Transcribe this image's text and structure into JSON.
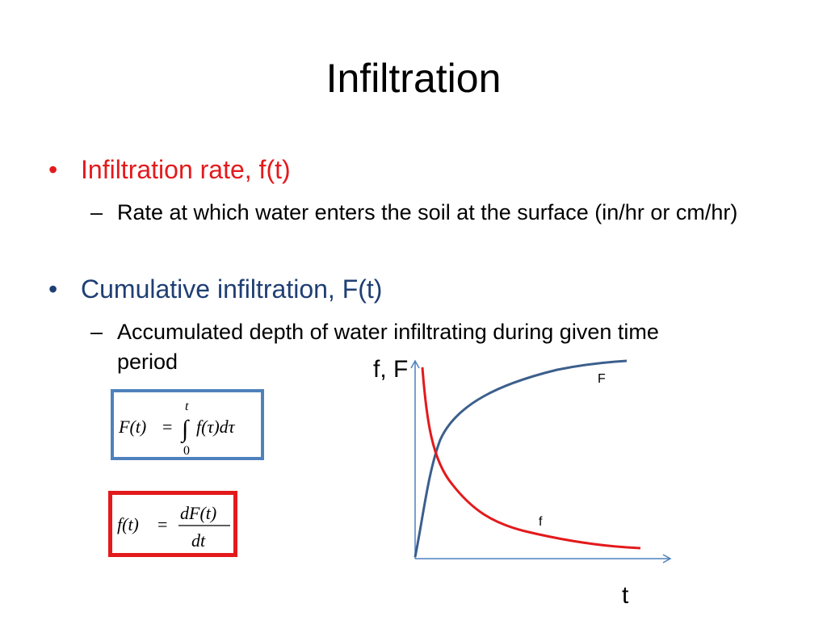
{
  "slide": {
    "title": "Infiltration",
    "bullets": [
      {
        "marker": "•",
        "text": "Infiltration rate, f(t)",
        "color": "#e31a1c",
        "sub": {
          "marker": "–",
          "text": "Rate at which water enters the soil at the surface (in/hr or cm/hr)"
        }
      },
      {
        "marker": "•",
        "text": "Cumulative infiltration, F(t)",
        "color": "#1f3f73",
        "sub": {
          "marker": "–",
          "text": "Accumulated depth of water infiltrating during given time period"
        }
      }
    ]
  },
  "equations": {
    "cumulative": {
      "lhs": "F(t)",
      "eq": "=",
      "integral": "∫",
      "upper": "t",
      "lower": "0",
      "integrand": "f(τ)dτ",
      "border_color": "#4f81bd"
    },
    "rate": {
      "lhs": "f(t)",
      "eq": "=",
      "numerator": "dF(t)",
      "denominator": "dt",
      "border_color": "#e31a1c"
    }
  },
  "chart": {
    "y_axis_label": "f, F",
    "x_axis_label": "t",
    "axis_color": "#4f81bd",
    "series": [
      {
        "name": "F",
        "color": "#3c5f8c"
      },
      {
        "name": "f",
        "color": "#e31a1c"
      }
    ]
  }
}
